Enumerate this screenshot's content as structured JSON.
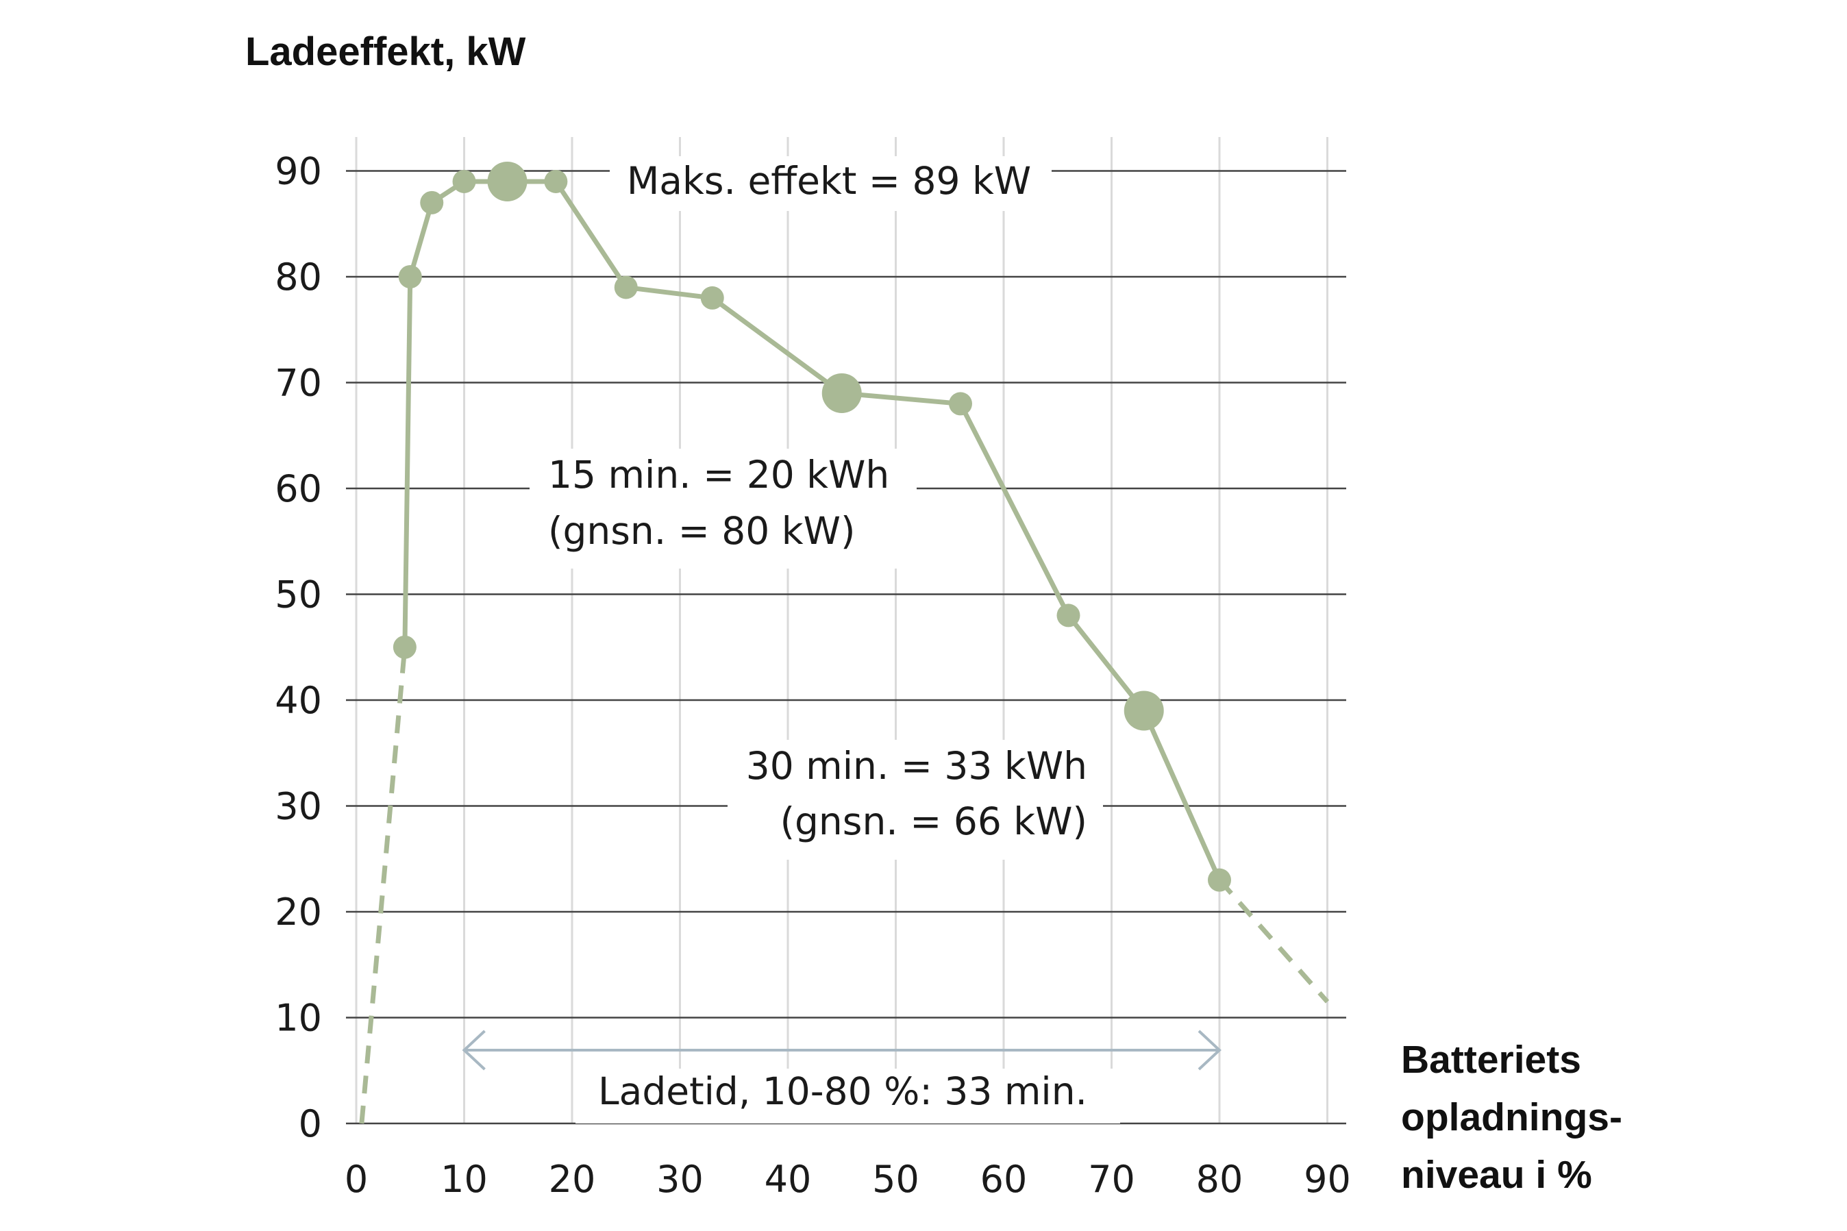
{
  "chart_data": {
    "type": "line",
    "ylabel": "Ladeeffekt, kW",
    "xlabel": [
      "Batteriets",
      "opladnings-",
      "niveau i %"
    ],
    "xlim": [
      0,
      90
    ],
    "ylim": [
      0,
      90
    ],
    "x_ticks": [
      0,
      10,
      20,
      30,
      40,
      50,
      60,
      70,
      80,
      90
    ],
    "y_ticks": [
      0,
      10,
      20,
      30,
      40,
      50,
      60,
      70,
      80,
      90
    ],
    "series": [
      {
        "name": "Ladeeffekt",
        "color": "#a9b995",
        "x": [
          4.5,
          5,
          7,
          10,
          14,
          18.5,
          25,
          33,
          45,
          56,
          66,
          73,
          80
        ],
        "y": [
          45,
          80,
          87,
          89,
          89,
          89,
          79,
          78,
          69,
          68,
          48,
          39,
          23
        ],
        "highlighted_points": [
          14,
          45,
          73
        ]
      }
    ],
    "dashed_extensions": [
      {
        "x": [
          0.5,
          4.5
        ],
        "y": [
          0,
          45
        ]
      },
      {
        "x": [
          80,
          90
        ],
        "y": [
          23,
          11.5
        ]
      }
    ],
    "annotations": {
      "max": "Maks. effekt = 89 kW",
      "min15_line1": "15 min. = 20 kWh",
      "min15_line2": "(gnsn. = 80 kW)",
      "min30_line1": "30 min. = 33 kWh",
      "min30_line2": "(gnsn. = 66 kW)",
      "charge_time": "Ladetid, 10-80 %: 33 min."
    },
    "charge_time_range": [
      10,
      80
    ],
    "colors": {
      "series": "#a9b995",
      "grid_h": "#444444",
      "grid_v": "#dadada",
      "arrow": "#a8b8c3"
    }
  }
}
